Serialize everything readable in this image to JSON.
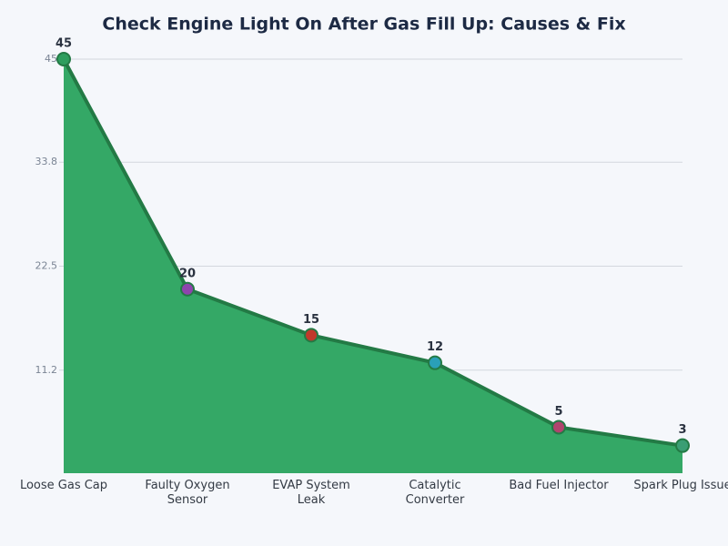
{
  "chart_data": {
    "type": "area",
    "title": "Check Engine Light On After Gas Fill Up: Causes & Fix",
    "categories": [
      "Loose Gas Cap",
      "Faulty Oxygen Sensor",
      "EVAP System Leak",
      "Catalytic Converter",
      "Bad Fuel Injector",
      "Spark Plug Issue"
    ],
    "values": [
      45,
      20,
      15,
      12,
      5,
      3
    ],
    "color": "#34a866",
    "line_color": "#237a45",
    "point_colors": [
      "#2e9e5e",
      "#8e44ad",
      "#c0392b",
      "#2aa0b8",
      "#b0446e",
      "#3a9e74"
    ],
    "ylim": [
      0,
      45
    ],
    "yticks": [
      11.2,
      22.5,
      33.8,
      45
    ],
    "grid": true
  }
}
